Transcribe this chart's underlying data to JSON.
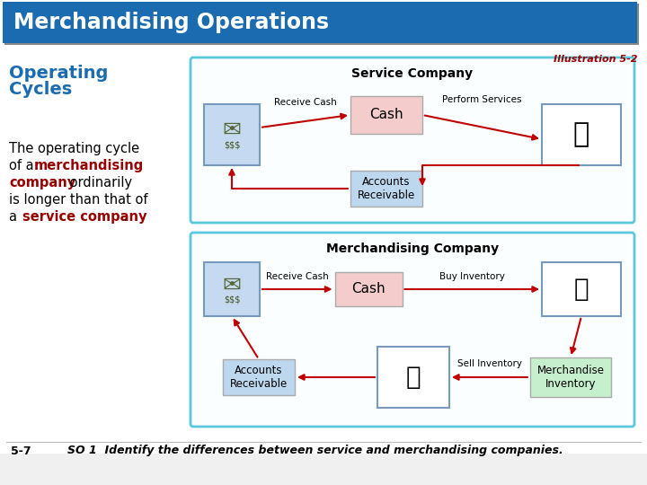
{
  "title": "Merchandising Operations",
  "title_bg": "#1B6BB0",
  "title_text_color": "#FFFFFF",
  "subtitle": "Operating\nCycles",
  "subtitle_color": "#1B6BB0",
  "illustration_label": "Illustration 5-2",
  "footer_left": "5-7",
  "footer_right": "SO 1  Identify the differences between service and merchandising companies.",
  "bg_color": "#FFFFFF",
  "page_bg": "#E8E8E8",
  "diagram_border_color": "#5BC8DC",
  "service_title": "Service Company",
  "merch_title": "Merchandising Company",
  "cash_box_color": "#F4CCCC",
  "ar_box_color": "#BDD7EE",
  "mi_box_color": "#C6EFCE",
  "arrow_color": "#C00000",
  "highlight_red": "#990000",
  "box_edge": "#AAAAAA",
  "img_bg_blue": "#C5D9F1",
  "img_bg_white": "#FFFFFF"
}
